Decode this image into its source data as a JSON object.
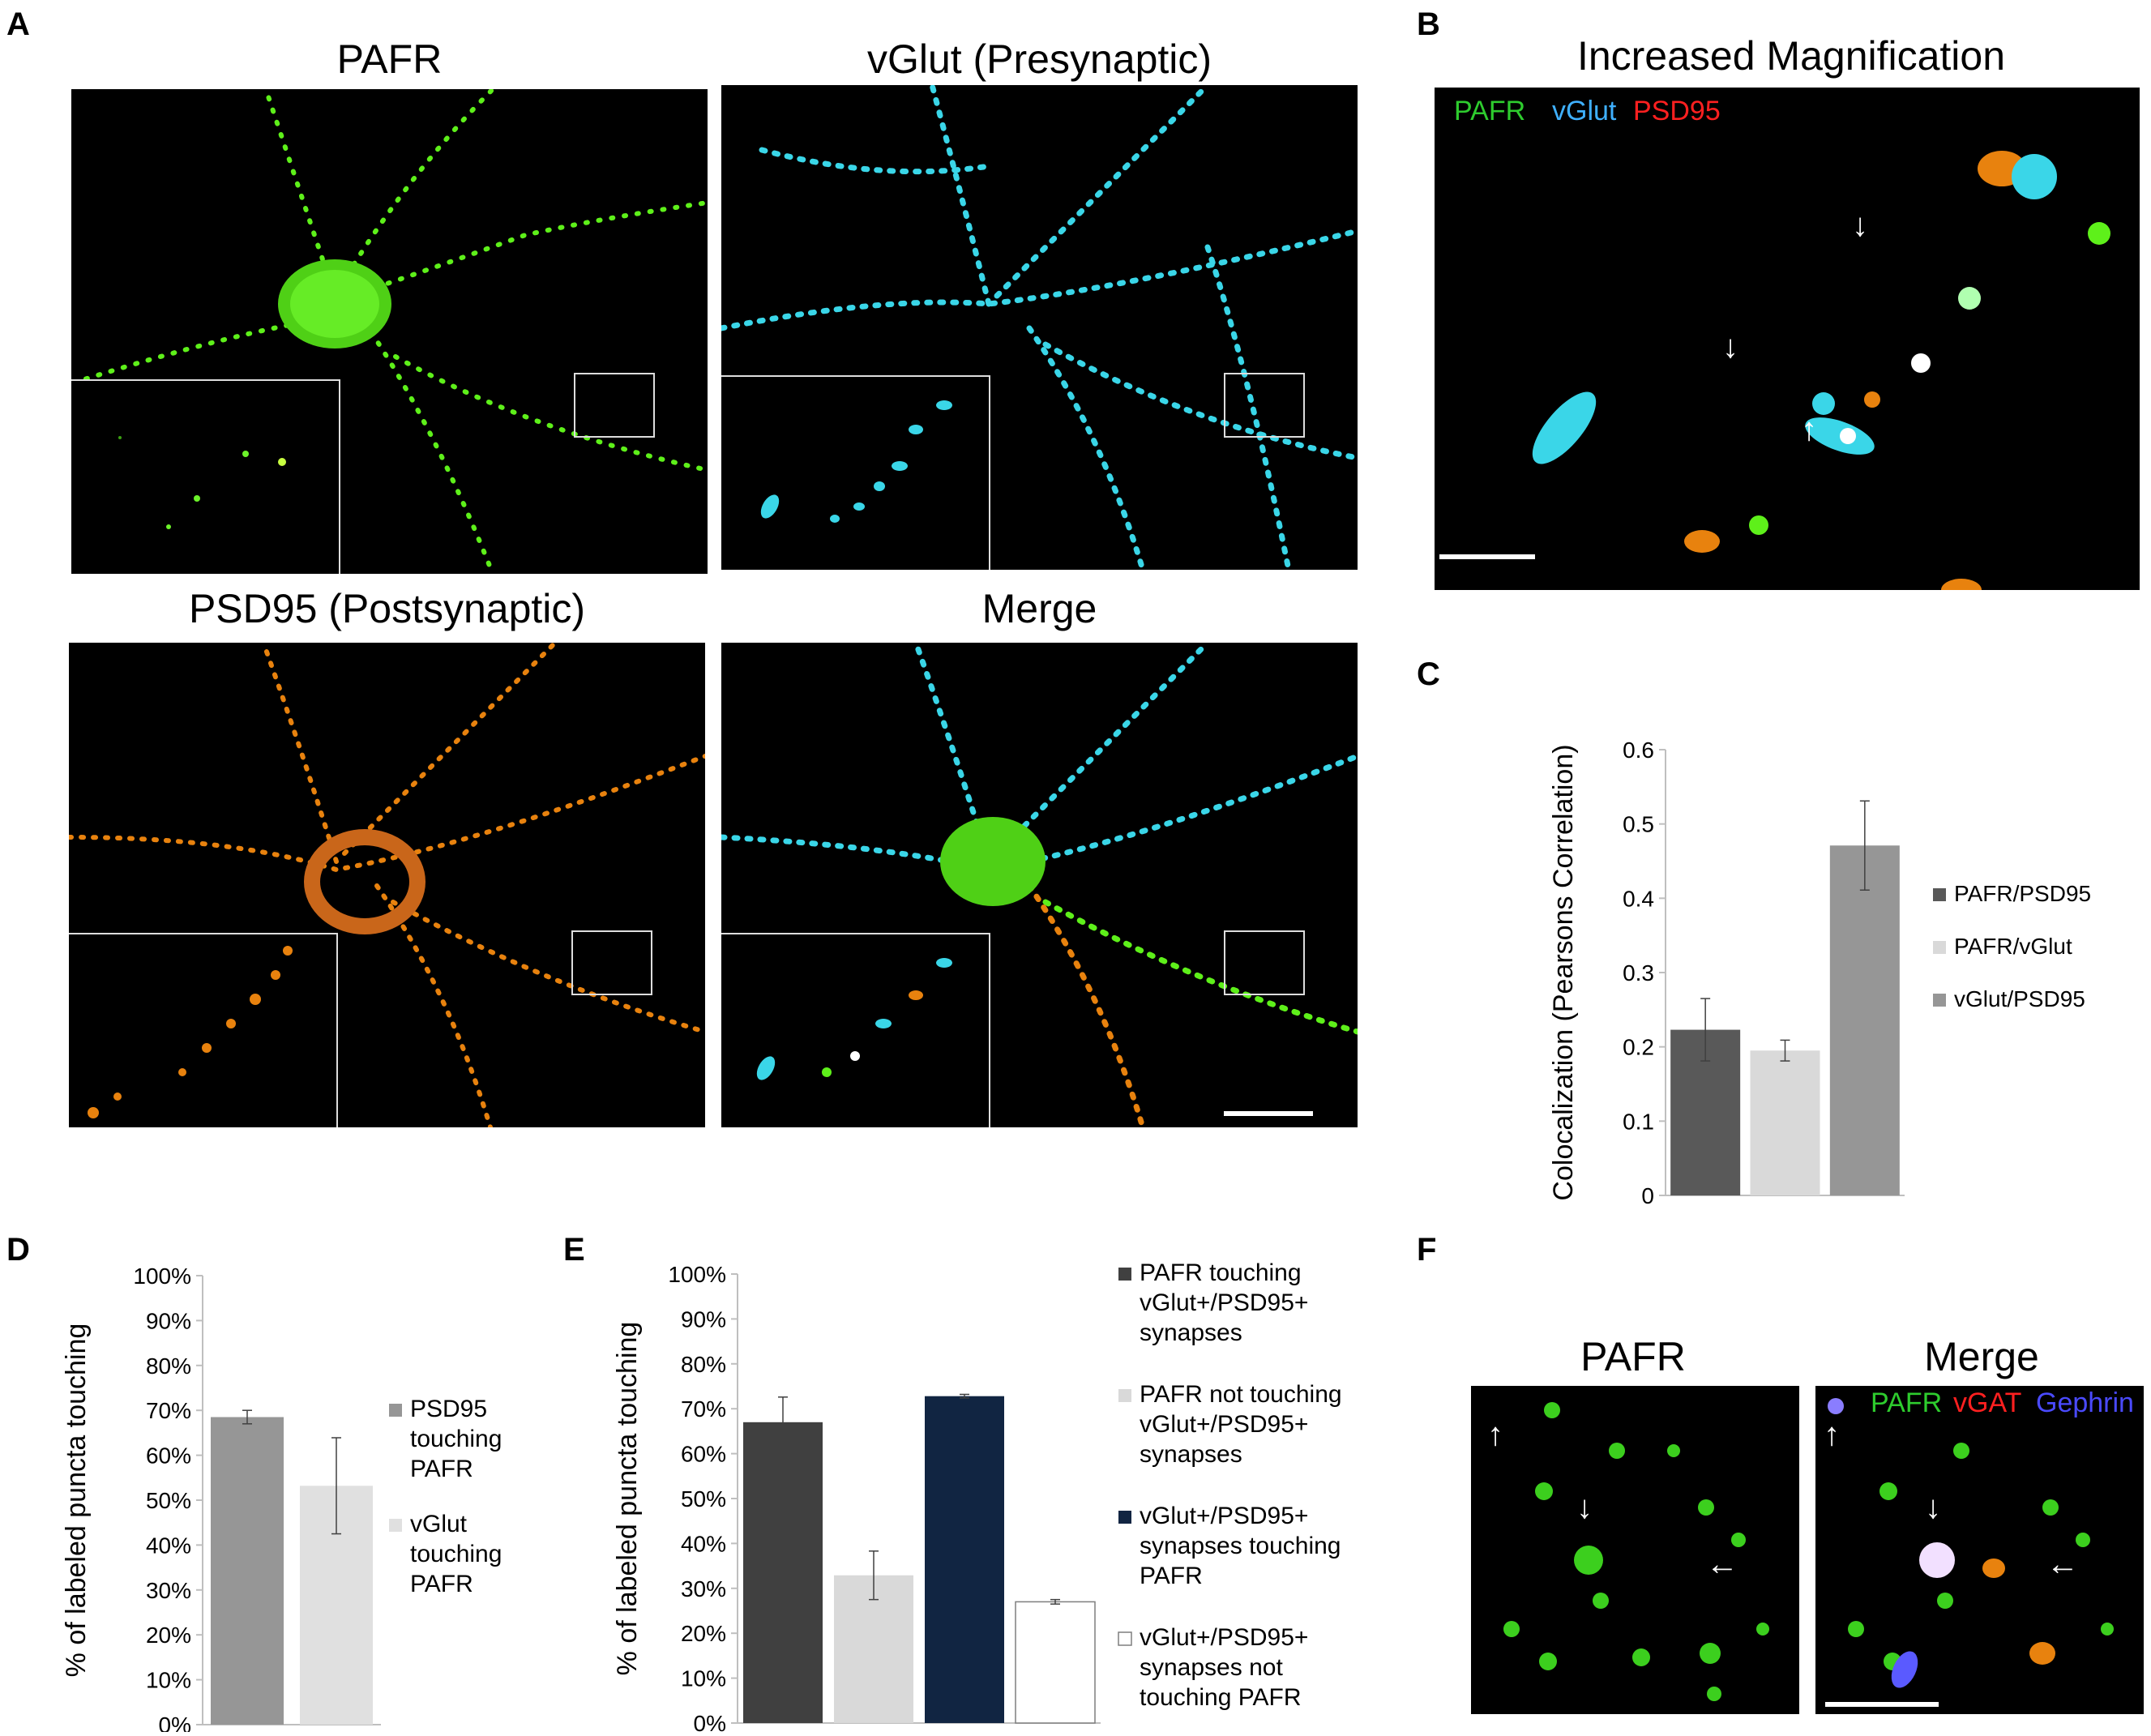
{
  "panel_letters": {
    "a": "A",
    "b": "B",
    "c": "C",
    "d": "D",
    "e": "E",
    "f": "F"
  },
  "panel_a": {
    "titles": {
      "pafr": "PAFR",
      "vglut": "vGlut (Presynaptic)",
      "psd95": "PSD95 (Postsynaptic)",
      "merge": "Merge"
    },
    "colors": {
      "pafr": "#5ef01a",
      "vglut": "#3ad6e8",
      "psd95": "#e8820e"
    }
  },
  "panel_b": {
    "title": "Increased Magnification",
    "labels": {
      "pafr": "PAFR",
      "vglut": "vGlut",
      "psd95": "PSD95"
    },
    "colors": {
      "pafr": "#2ecc2e",
      "vglut": "#3fb0ff",
      "psd95": "#ff2020"
    }
  },
  "panel_f": {
    "titles": {
      "pafr": "PAFR",
      "merge": "Merge"
    },
    "labels": {
      "pafr": "PAFR",
      "vgat": "vGAT",
      "gephrin": "Gephrin"
    },
    "colors": {
      "pafr": "#2ecc2e",
      "vgat": "#ff2020",
      "gephrin": "#4a4aff"
    }
  },
  "chart_data": [
    {
      "id": "C",
      "type": "bar",
      "ylabel": "Colocalization (Pearsons Correlation)",
      "ylim": [
        0,
        0.6
      ],
      "yticks": [
        "0",
        "0.1",
        "0.2",
        "0.3",
        "0.4",
        "0.5",
        "0.6"
      ],
      "legend_position": "right",
      "series": [
        {
          "name": "PAFR/PSD95",
          "value": 0.223,
          "error": 0.042,
          "color": "#595959"
        },
        {
          "name": "PAFR/vGlut",
          "value": 0.195,
          "error": 0.014,
          "color": "#d9d9d9"
        },
        {
          "name": "vGlut/PSD95",
          "value": 0.471,
          "error": 0.06,
          "color": "#969696"
        }
      ]
    },
    {
      "id": "D",
      "type": "bar",
      "ylabel": "% of labeled puncta touching",
      "ylim": [
        0,
        100
      ],
      "yticks": [
        "0%",
        "10%",
        "20%",
        "30%",
        "40%",
        "50%",
        "60%",
        "70%",
        "80%",
        "90%",
        "100%"
      ],
      "legend_position": "right",
      "series": [
        {
          "name": "PSD95 touching PAFR",
          "value": 68.5,
          "error": 1.5,
          "color": "#969696",
          "legend_lines": [
            "PSD95",
            "touching",
            "PAFR"
          ]
        },
        {
          "name": "vGlut touching PAFR",
          "value": 53.2,
          "error": 10.7,
          "color": "#e0e0e0",
          "legend_lines": [
            "vGlut",
            "touching",
            "PAFR"
          ]
        }
      ]
    },
    {
      "id": "E",
      "type": "bar",
      "ylabel": "% of labeled puncta touching",
      "ylim": [
        0,
        100
      ],
      "yticks": [
        "0%",
        "10%",
        "20%",
        "30%",
        "40%",
        "50%",
        "60%",
        "70%",
        "80%",
        "90%",
        "100%"
      ],
      "legend_position": "right",
      "series": [
        {
          "name": "PAFR touching vGlut+/PSD95+ synapses",
          "value": 67.0,
          "error": 5.6,
          "color": "#404040",
          "legend_lines": [
            "PAFR touching",
            "vGlut+/PSD95+",
            "synapses"
          ]
        },
        {
          "name": "PAFR not touching vGlut+/PSD95+ synapses",
          "value": 32.9,
          "error": 5.4,
          "color": "#d9d9d9",
          "legend_lines": [
            "PAFR not touching",
            "vGlut+/PSD95+",
            "synapses"
          ]
        },
        {
          "name": "vGlut+/PSD95+ synapses touching PAFR",
          "value": 72.8,
          "error": 0.4,
          "color": "#112542",
          "legend_lines": [
            "vGlut+/PSD95+",
            "synapses touching",
            "PAFR"
          ]
        },
        {
          "name": "vGlut+/PSD95+ synapses not touching PAFR",
          "value": 27.0,
          "error": 0.5,
          "color": "#ffffff",
          "legend_lines": [
            "vGlut+/PSD95+",
            "synapses not",
            "touching PAFR"
          ]
        }
      ]
    }
  ]
}
